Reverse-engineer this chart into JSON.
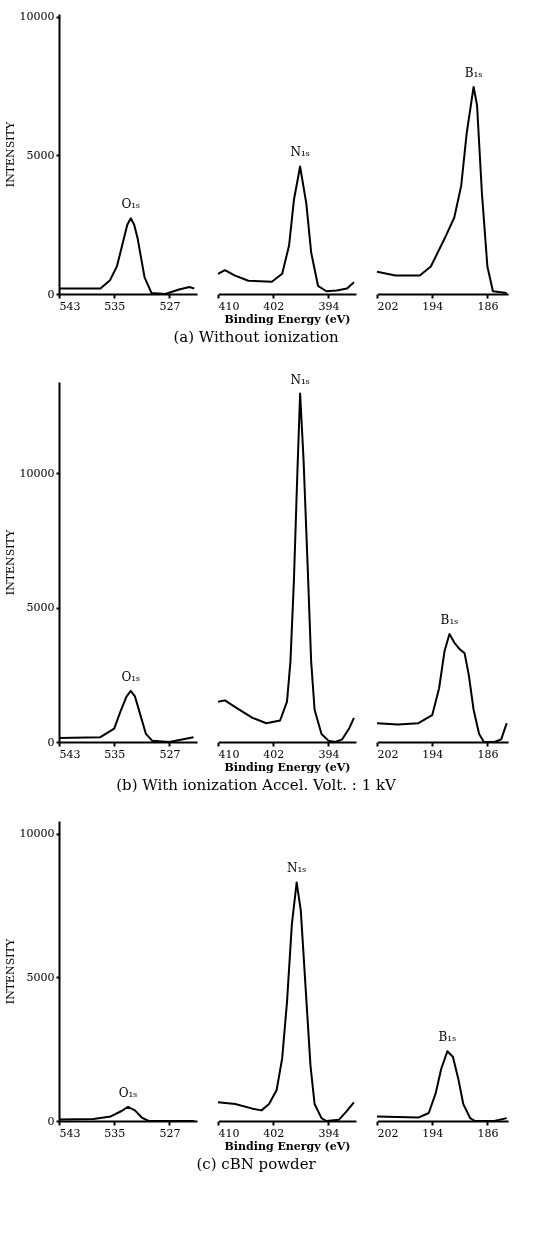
{
  "chart_data": [
    {
      "type": "line",
      "ylabel": "INTENSITY",
      "xlim": [
        543,
        523
      ],
      "ylim": [
        0,
        10100
      ],
      "grid": false,
      "yticks": [
        0,
        5000,
        10000
      ],
      "xticks": [
        543,
        535,
        527
      ],
      "x": [
        543,
        537,
        535.6,
        534.6,
        533.6,
        533.1,
        532.6,
        532.1,
        531.6,
        530.6,
        529.6,
        527.6,
        525.6,
        524.1,
        523.4
      ],
      "series": [
        {
          "color": "#000000",
          "values": [
            200,
            200,
            500,
            1000,
            2000,
            2500,
            2730,
            2500,
            2000,
            600,
            40,
            0,
            160,
            250,
            200
          ]
        }
      ],
      "annotations": [
        {
          "text": "O₁ₛ",
          "x": 532.6,
          "y": 2730
        }
      ]
    },
    {
      "type": "line",
      "xlabel": "Binding Energy (eV)",
      "title": "(a) Without ionization",
      "tick_labels": "x",
      "xlim": [
        410,
        390
      ],
      "ylim": [
        0,
        10100
      ],
      "grid": false,
      "xticks": [
        410,
        402,
        394
      ],
      "x": [
        410,
        409,
        407.6,
        405.6,
        402.2,
        400.7,
        399.7,
        399,
        398.1,
        397.2,
        396.5,
        395.5,
        394.3,
        392.8,
        391.3,
        390.3
      ],
      "series": [
        {
          "color": "#000000",
          "values": [
            730,
            860,
            670,
            480,
            440,
            730,
            1750,
            3390,
            4600,
            3260,
            1500,
            290,
            100,
            130,
            200,
            420
          ]
        }
      ],
      "annotations": [
        {
          "text": "N₁ₛ",
          "x": 398.1,
          "y": 4600
        }
      ]
    },
    {
      "type": "line",
      "tick_labels": "x",
      "xlim": [
        202,
        183
      ],
      "grid": false,
      "xticks": [
        202,
        194,
        186
      ],
      "ylim": [
        0,
        10100
      ],
      "x": [
        202,
        199.3,
        195.8,
        194.2,
        192.2,
        190.8,
        189.8,
        189,
        188,
        187.5,
        186.8,
        186,
        185.2,
        183.2
      ],
      "series": [
        {
          "color": "#000000",
          "values": [
            800,
            670,
            670,
            990,
            2000,
            2760,
            3900,
            5800,
            7470,
            6810,
            3650,
            990,
            100,
            40
          ]
        }
      ],
      "annotations": [
        {
          "text": "B₁ₛ",
          "x": 188,
          "y": 7470
        }
      ]
    },
    {
      "type": "line",
      "ylabel": "INTENSITY",
      "xlim": [
        543,
        523
      ],
      "ylim": [
        0,
        13400
      ],
      "grid": false,
      "yticks": [
        0,
        5000,
        10000
      ],
      "xticks": [
        543,
        535,
        527
      ],
      "x": [
        543,
        537,
        535,
        534,
        533.2,
        532.6,
        532,
        531.2,
        530.4,
        529.5,
        527,
        525,
        523.5
      ],
      "series": [
        {
          "color": "#000000",
          "values": [
            150,
            180,
            500,
            1200,
            1700,
            1900,
            1700,
            1000,
            300,
            50,
            0,
            100,
            180
          ]
        }
      ],
      "annotations": [
        {
          "text": "O₁ₛ",
          "x": 532.6,
          "y": 1900
        }
      ]
    },
    {
      "type": "line",
      "xlabel": "Binding Energy (eV)",
      "title": "(b) With ionization Accel. Volt. : 1 kV",
      "tick_labels": "x",
      "xlim": [
        410,
        390
      ],
      "grid": false,
      "xticks": [
        410,
        402,
        394
      ],
      "ylim": [
        0,
        13400
      ],
      "x": [
        410,
        409,
        407.5,
        405,
        403,
        401,
        400,
        399.5,
        399,
        398.5,
        398.1,
        397.6,
        397,
        396.5,
        396,
        395,
        394,
        393,
        392,
        391,
        390.3
      ],
      "series": [
        {
          "color": "#000000",
          "values": [
            1500,
            1550,
            1300,
            900,
            700,
            800,
            1500,
            3000,
            6000,
            10000,
            12970,
            10500,
            6500,
            3000,
            1200,
            300,
            50,
            0,
            100,
            500,
            900
          ]
        }
      ],
      "annotations": [
        {
          "text": "N₁ₛ",
          "x": 398.1,
          "y": 12970
        }
      ]
    },
    {
      "type": "line",
      "tick_labels": "x",
      "xlim": [
        202,
        183
      ],
      "grid": false,
      "xticks": [
        202,
        194,
        186
      ],
      "ylim": [
        0,
        13400
      ],
      "x": [
        202,
        199,
        196,
        194,
        193,
        192.2,
        191.5,
        190.8,
        190,
        189.3,
        188.7,
        188,
        187.2,
        186.5,
        185,
        184,
        183.2
      ],
      "series": [
        {
          "color": "#000000",
          "values": [
            700,
            650,
            700,
            1000,
            2000,
            3400,
            4020,
            3700,
            3450,
            3300,
            2500,
            1200,
            300,
            0,
            0,
            100,
            700
          ]
        }
      ],
      "annotations": [
        {
          "text": "B₁ₛ",
          "x": 191.5,
          "y": 4020
        }
      ]
    },
    {
      "type": "line",
      "ylabel": "INTENSITY",
      "xlim": [
        543,
        523
      ],
      "ylim": [
        0,
        10450
      ],
      "grid": false,
      "yticks": [
        0,
        5000,
        10000
      ],
      "xticks": [
        543,
        535,
        527
      ],
      "x": [
        543,
        538,
        535.5,
        534,
        533,
        532,
        531,
        530,
        527,
        523.4
      ],
      "series": [
        {
          "color": "#000000",
          "values": [
            50,
            70,
            160,
            340,
            490,
            370,
            120,
            0,
            0,
            0
          ]
        }
      ],
      "annotations": [
        {
          "text": "O₁ₛ",
          "x": 533,
          "y": 490
        }
      ]
    },
    {
      "type": "line",
      "xlabel": "Binding Energy (eV)",
      "title": "(c) cBN powder",
      "tick_labels": "x",
      "xlim": [
        410,
        390
      ],
      "grid": false,
      "xticks": [
        410,
        402,
        394
      ],
      "ylim": [
        0,
        10450
      ],
      "x": [
        410,
        407.5,
        405,
        403.7,
        402.6,
        401.5,
        400.7,
        400,
        399.3,
        398.6,
        398,
        397.3,
        396.6,
        396,
        395,
        394.3,
        392.5,
        391.5,
        390.3
      ],
      "series": [
        {
          "color": "#000000",
          "values": [
            650,
            590,
            430,
            370,
            590,
            1080,
            2180,
            4140,
            6840,
            8310,
            7330,
            4630,
            1940,
            590,
            100,
            0,
            40,
            300,
            650
          ]
        }
      ],
      "annotations": [
        {
          "text": "N₁ₛ",
          "x": 398.6,
          "y": 8310
        }
      ]
    },
    {
      "type": "line",
      "tick_labels": "x",
      "xlim": [
        202,
        183
      ],
      "grid": false,
      "xticks": [
        202,
        194,
        186
      ],
      "ylim": [
        0,
        10450
      ],
      "x": [
        202,
        196,
        194.5,
        193.5,
        192.7,
        191.8,
        191,
        190.2,
        189.5,
        188.5,
        187.8,
        185,
        183.2
      ],
      "series": [
        {
          "color": "#000000",
          "values": [
            160,
            120,
            280,
            960,
            1810,
            2430,
            2240,
            1450,
            590,
            100,
            0,
            0,
            100
          ]
        }
      ],
      "annotations": [
        {
          "text": "B₁ₛ",
          "x": 191.8,
          "y": 2430
        }
      ]
    }
  ]
}
